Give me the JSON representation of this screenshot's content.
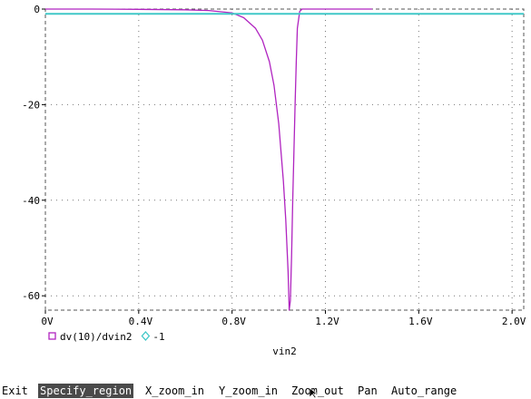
{
  "chart_data": {
    "type": "line",
    "xlabel": "vin2",
    "xlim": [
      0,
      2.05
    ],
    "ylim": [
      -63,
      0
    ],
    "x_ticks": [
      {
        "value": 0,
        "label": "0V"
      },
      {
        "value": 0.4,
        "label": "0.4V"
      },
      {
        "value": 0.8,
        "label": "0.8V"
      },
      {
        "value": 1.2,
        "label": "1.2V"
      },
      {
        "value": 1.6,
        "label": "1.6V"
      },
      {
        "value": 2.0,
        "label": "2.0V"
      }
    ],
    "y_ticks": [
      {
        "value": 0,
        "label": "0"
      },
      {
        "value": -20,
        "label": "-20"
      },
      {
        "value": -40,
        "label": "-40"
      },
      {
        "value": -60,
        "label": "-60"
      }
    ],
    "grid": "dotted",
    "legend_position": "bottom-left",
    "series": [
      {
        "name": "dv(10)/dvin2",
        "color": "#b024c0",
        "marker": "square",
        "x": [
          0,
          0.2,
          0.4,
          0.6,
          0.7,
          0.8,
          0.85,
          0.9,
          0.93,
          0.96,
          0.98,
          1.0,
          1.02,
          1.03,
          1.04,
          1.045,
          1.05,
          1.055,
          1.06,
          1.07,
          1.075,
          1.08,
          1.09,
          1.1,
          1.2,
          1.4
        ],
        "y": [
          0,
          0,
          -0.05,
          -0.15,
          -0.3,
          -0.8,
          -1.8,
          -4,
          -6.5,
          -11,
          -16,
          -24,
          -36,
          -44,
          -55,
          -63,
          -61,
          -52,
          -40,
          -20,
          -11,
          -4,
          -0.5,
          0,
          0,
          0
        ]
      },
      {
        "name": "-1",
        "color": "#40c8c8",
        "marker": "diamond",
        "x": [
          0,
          2.05
        ],
        "y": [
          -1,
          -1
        ]
      }
    ]
  },
  "menu": {
    "items": [
      {
        "label": "Exit",
        "selected": false
      },
      {
        "label": "Specify_region",
        "selected": true
      },
      {
        "label": "X_zoom_in",
        "selected": false
      },
      {
        "label": "Y_zoom_in",
        "selected": false
      },
      {
        "label": "Zoom_out",
        "selected": false
      },
      {
        "label": "Pan",
        "selected": false
      },
      {
        "label": "Auto_range",
        "selected": false
      }
    ]
  }
}
